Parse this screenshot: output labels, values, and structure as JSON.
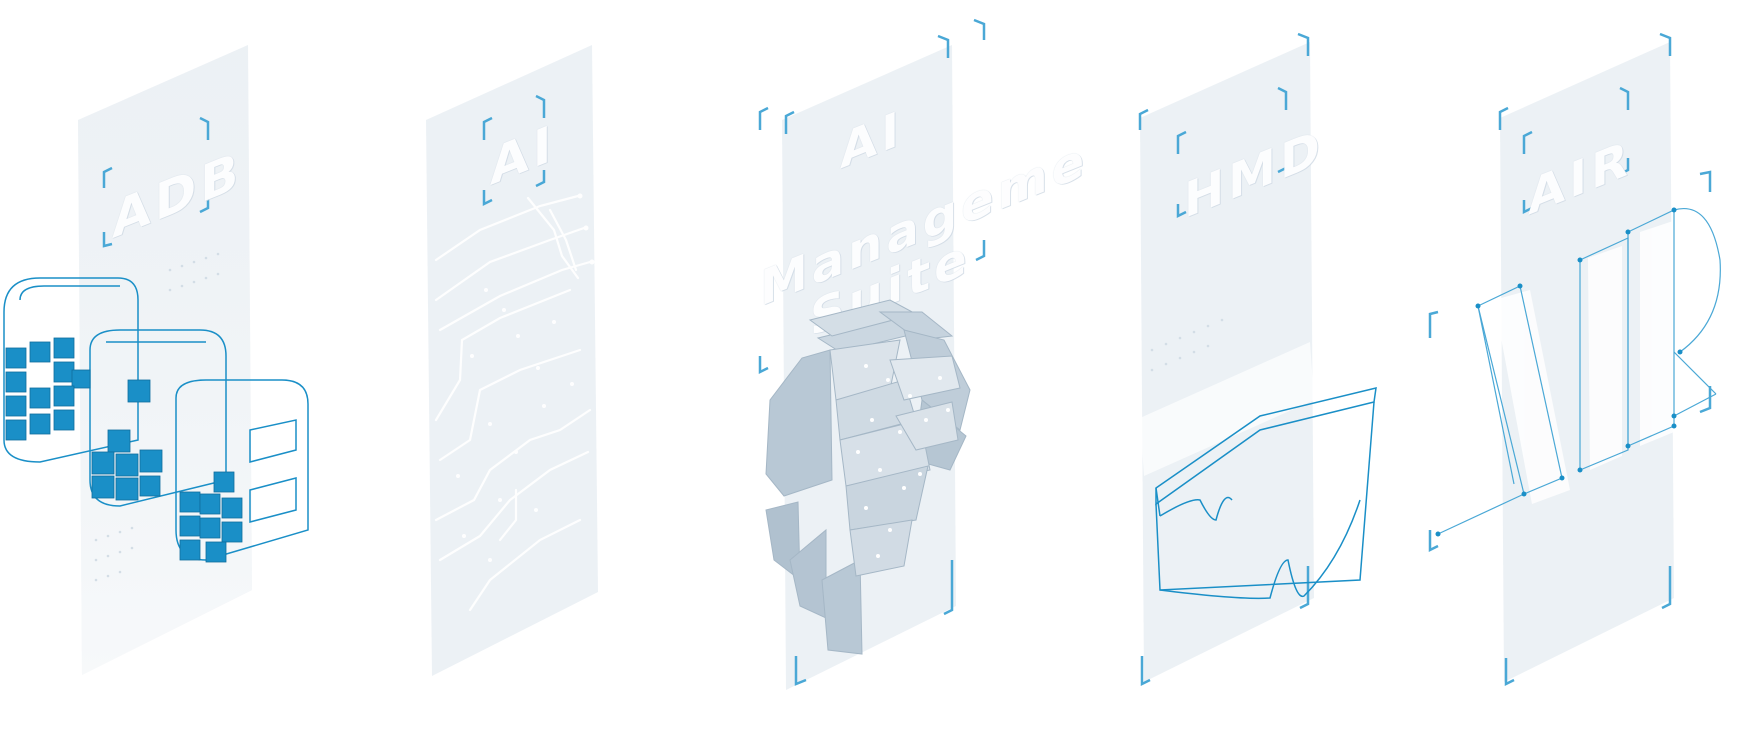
{
  "panels": [
    {
      "id": "adb",
      "label": "ADB"
    },
    {
      "id": "ai",
      "label": "AI"
    },
    {
      "id": "ai-management",
      "lines": [
        "AI",
        "Manageme",
        "Suite"
      ]
    },
    {
      "id": "hmd",
      "label": "HMD"
    },
    {
      "id": "air",
      "label": "AIR"
    }
  ],
  "colors": {
    "accent": "#1a8fc7",
    "accent_dark": "#0f6d9e",
    "glass": "#e8edf2",
    "bracket": "#4aa8d6",
    "brain": "#b9c9d6"
  },
  "icons": [
    "adb-3d-logo-icon",
    "circuit-board-icon",
    "brain-cube-icon",
    "vr-headset-icon",
    "vr-letters-icon"
  ]
}
